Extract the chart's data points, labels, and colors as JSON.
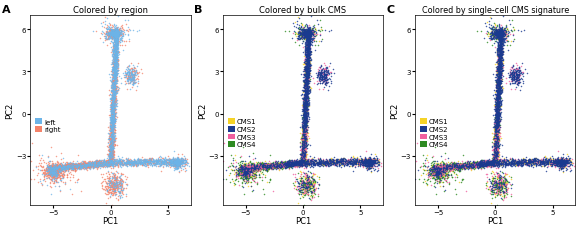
{
  "panel_A_title": "Colored by region",
  "panel_B_title": "Colored by bulk CMS",
  "panel_C_title": "Colored by single-cell CMS signature",
  "panel_labels": [
    "A",
    "B",
    "C"
  ],
  "xlabel": "PC1",
  "ylabel": "PC2",
  "xlim": [
    -7,
    7
  ],
  "ylim": [
    -6.5,
    7
  ],
  "xticks": [
    -5,
    0,
    5
  ],
  "yticks": [
    -3,
    0,
    3,
    6
  ],
  "left_color": "#6CB4E8",
  "right_color": "#F4836A",
  "cms1_color": "#F5D327",
  "cms2_color": "#1A3A8F",
  "cms3_color": "#F060A0",
  "cms4_color": "#2E8B22",
  "n_points": 8000,
  "point_size": 1.2,
  "background_color": "#ffffff"
}
